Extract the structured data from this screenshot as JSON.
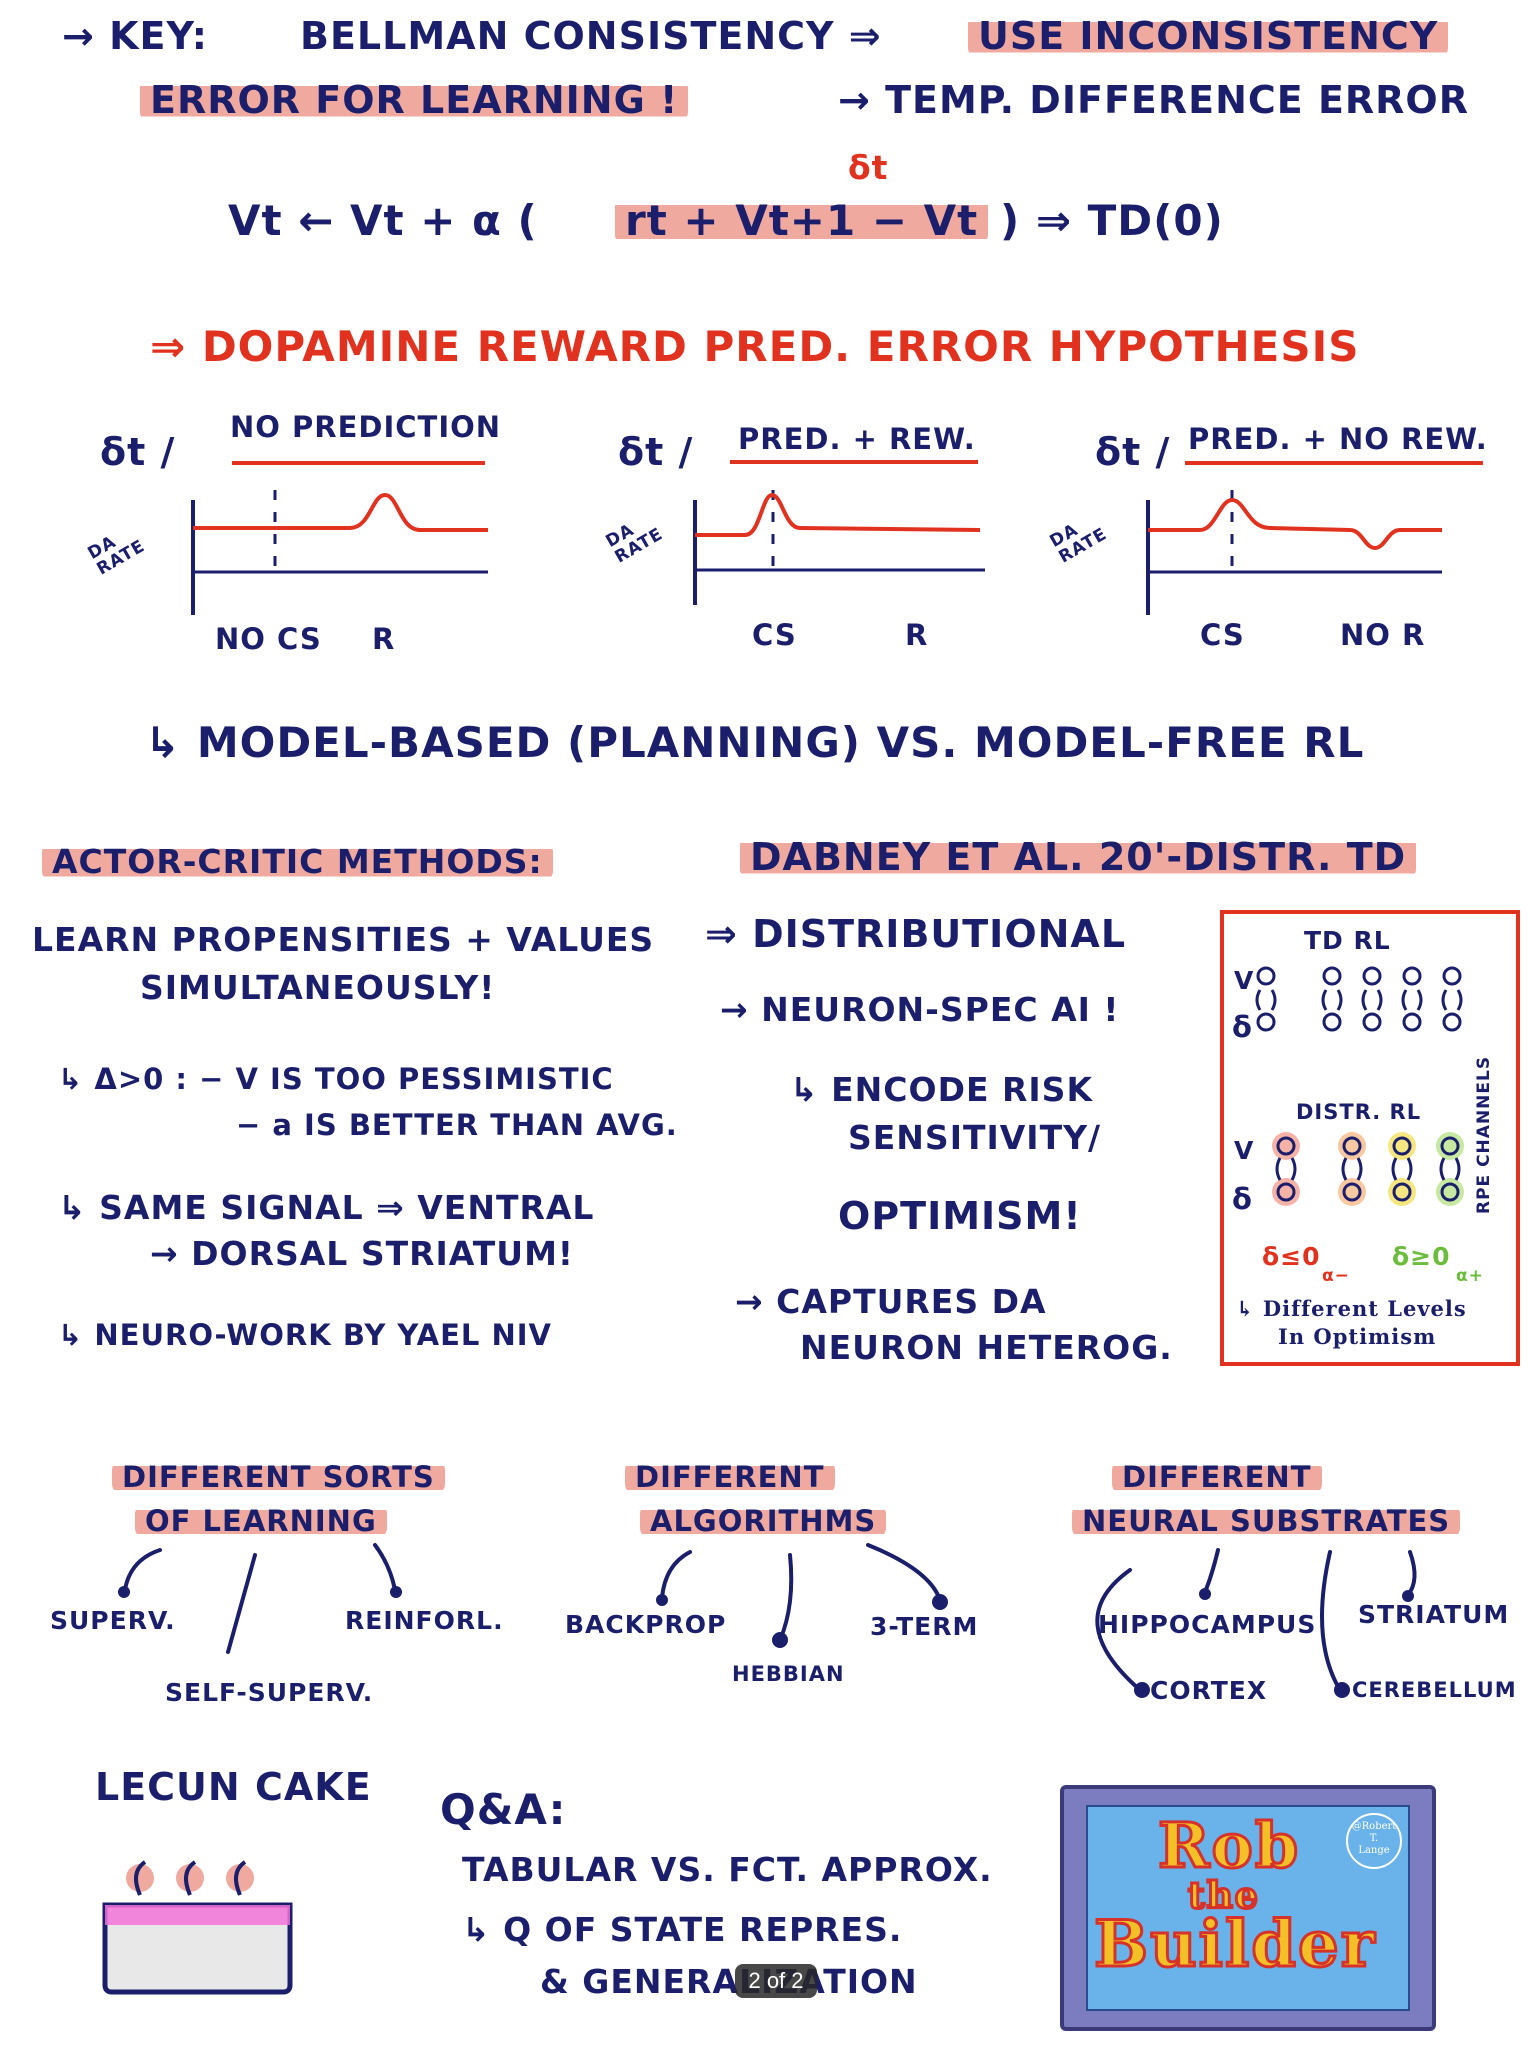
{
  "header": {
    "key_label": "→ KEY:",
    "bellman": "BELLMAN CONSISTENCY ⇒",
    "use_inconsistency": "USE INCONSISTENCY",
    "error_for_learning": "ERROR FOR LEARNING !",
    "td_error": "→ TEMP. DIFFERENCE ERROR"
  },
  "equation": {
    "delta_label": "δt",
    "lhs": "Vt ← Vt + α (",
    "term": "rt + Vt+1 − Vt",
    "rhs": ") ⇒ TD(0)"
  },
  "dopamine": {
    "title": "⇒ DOPAMINE REWARD PRED. ERROR HYPOTHESIS",
    "panels": [
      {
        "axis": "δt /",
        "rate": "DA RATE",
        "title": "NO PREDICTION",
        "x_left": "NO CS",
        "x_right": "R"
      },
      {
        "axis": "δt /",
        "rate": "DA RATE",
        "title": "PRED. + REW.",
        "x_left": "CS",
        "x_right": "R"
      },
      {
        "axis": "δt /",
        "rate": "DA RATE",
        "title": "PRED. + NO REW.",
        "x_left": "CS",
        "x_right": "NO R"
      }
    ]
  },
  "model_line": "↳ MODEL-BASED (PLANNING) VS. MODEL-FREE RL",
  "actor_critic": {
    "title": "ACTOR-CRITIC METHODS:",
    "line1": "LEARN PROPENSITIES + VALUES",
    "line2": "SIMULTANEOUSLY!",
    "delta_line": "↳ δ>0 : − V IS TOO PESSIMISTIC",
    "a_line": "− a IS BETTER THAN AVG.",
    "same1": "↳ SAME SIGNAL ⇒ VENTRAL",
    "same2": "→ DORSAL STRIATUM!",
    "neuro": "↳ NEURO-WORK BY YAEL NIV"
  },
  "dabney": {
    "title": "DABNEY ET AL. 20'-DISTR. TD",
    "l1": "⇒ DISTRIBUTIONAL",
    "l2": "→ NEURON-SPEC αi !",
    "l3": "↳ ENCODE RISK",
    "l4": "SENSITIVITY/",
    "l5": "OPTIMISM!",
    "l6": "→ CAPTURES DA",
    "l7": "NEURON HETEROG."
  },
  "box": {
    "td_rl": "TD RL",
    "distr_rl": "DISTR. RL",
    "v": "V",
    "delta": "δ",
    "channels": "RPE CHANNELS",
    "neg": "δ≤0",
    "neg_sub": "α−",
    "pos": "δ≥0",
    "pos_sub": "α+",
    "diff1": "↳ Different Levels",
    "diff2": "In Optimism"
  },
  "sorts": {
    "title1": "DIFFERENT SORTS",
    "title2": "OF LEARNING",
    "items": [
      "SUPERV.",
      "SELF-SUPERV.",
      "REINFORL."
    ]
  },
  "algos": {
    "title1": "DIFFERENT",
    "title2": "ALGORITHMS",
    "items": [
      "BACKPROP",
      "HEBBIAN",
      "3-TERM"
    ]
  },
  "substrates": {
    "title1": "DIFFERENT",
    "title2": "NEURAL SUBSTRATES",
    "items": [
      "HIPPOCAMPUS",
      "CORTEX",
      "STRIATUM",
      "CEREBELLUM"
    ]
  },
  "lecun": {
    "title": "LECUN CAKE"
  },
  "qa": {
    "title": "Q&A:",
    "l1": "TABULAR VS. FCT. APPROX.",
    "l2": "↳ Q OF STATE REPRES.",
    "l3": "& GENERALIZATION"
  },
  "logo": {
    "handle1": "@Robert",
    "handle2": "T.",
    "handle3": "Lange",
    "w1": "Rob",
    "w2": "the",
    "w3": "Builder"
  },
  "page_indicator": "2 of 2",
  "colors": {
    "ink": "#1b1f6b",
    "accent": "#e0321e",
    "highlight": "#f0a99f"
  }
}
